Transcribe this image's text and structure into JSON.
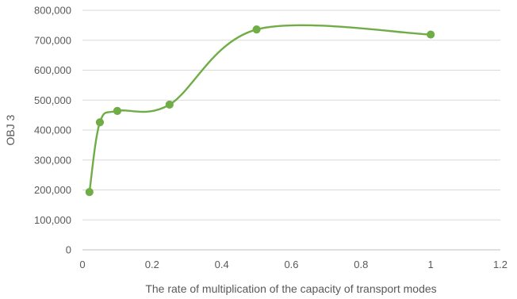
{
  "chart_data": {
    "type": "scatter",
    "title": "",
    "xlabel": "The rate of multiplication of the capacity of transport modes",
    "ylabel": "OBJ 3",
    "x_ticks": [
      "0",
      "0.2",
      "0.4",
      "0.6",
      "0.8",
      "1",
      "1.2"
    ],
    "y_ticks": [
      "0",
      "100,000",
      "200,000",
      "300,000",
      "400,000",
      "500,000",
      "600,000",
      "700,000",
      "800,000"
    ],
    "xlim": [
      0,
      1.2
    ],
    "ylim": [
      0,
      800000
    ],
    "grid": "horizontal",
    "smooth_line": true,
    "series": [
      {
        "color": "#70ad47",
        "points": [
          {
            "x": 0.02,
            "y": 193000
          },
          {
            "x": 0.05,
            "y": 426000
          },
          {
            "x": 0.1,
            "y": 464000
          },
          {
            "x": 0.25,
            "y": 485000
          },
          {
            "x": 0.5,
            "y": 736000
          },
          {
            "x": 1.0,
            "y": 719000
          }
        ]
      }
    ]
  }
}
